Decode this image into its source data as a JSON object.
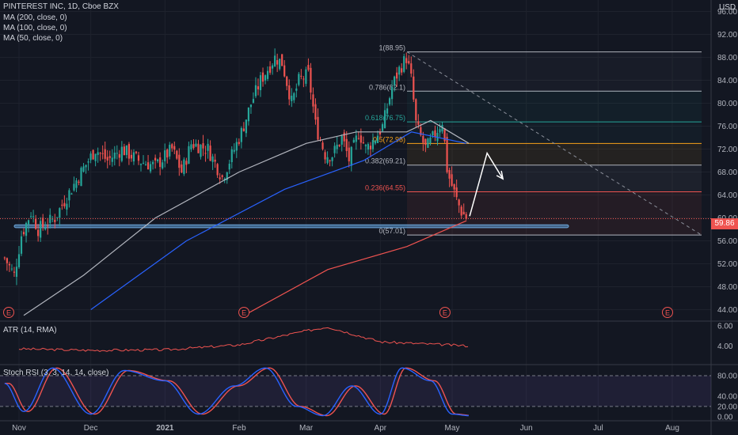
{
  "header": {
    "title": "PINTEREST INC, 1D, Cboe BZX",
    "indicators": [
      "MA (200, close, 0)",
      "MA (100, close, 0)",
      "MA (50, close, 0)"
    ],
    "currency": "USD"
  },
  "current_price": "59.86",
  "atr_label": "ATR (14, RMA)",
  "stoch_label": "Stoch RSI (3, 3, 14, 14, close)",
  "event_marker": "E",
  "colors": {
    "background": "#131722",
    "up": "#26a69a",
    "down": "#ef5350",
    "ma200": "#ef5350",
    "ma100": "#2962ff",
    "ma50": "#b2b5be",
    "stoch_k": "#2962ff",
    "stoch_d": "#ef5350",
    "support_band": "#5b9bd5"
  },
  "chart_data": [
    {
      "type": "candlestick",
      "x_axis": {
        "ticks": [
          "Nov",
          "Dec",
          "2021",
          "Feb",
          "Mar",
          "Apr",
          "May",
          "Jun",
          "Jul",
          "Aug"
        ]
      },
      "y_axis": {
        "ticks": [
          "96.00",
          "92.00",
          "88.00",
          "84.00",
          "80.00",
          "76.00",
          "72.00",
          "68.00",
          "64.00",
          "60.00",
          "56.00",
          "52.00",
          "48.00",
          "44.00"
        ],
        "range": [
          42,
          98
        ]
      },
      "price_path": [
        [
          "Oct 26",
          53
        ],
        [
          "Oct 30",
          50
        ],
        [
          "Nov 2",
          57
        ],
        [
          "Nov 6",
          61
        ],
        [
          "Nov 9",
          58
        ],
        [
          "Nov 16",
          60
        ],
        [
          "Nov 20",
          63
        ],
        [
          "Nov 27",
          68
        ],
        [
          "Dec 3",
          72
        ],
        [
          "Dec 8",
          70
        ],
        [
          "Dec 14",
          72
        ],
        [
          "Dec 21",
          70
        ],
        [
          "Dec 28",
          69
        ],
        [
          "Jan 4",
          72
        ],
        [
          "Jan 8",
          68
        ],
        [
          "Jan 12",
          73
        ],
        [
          "Jan 19",
          72
        ],
        [
          "Jan 25",
          67
        ],
        [
          "Jan 29",
          71
        ],
        [
          "Feb 2",
          75
        ],
        [
          "Feb 6",
          80
        ],
        [
          "Feb 10",
          84
        ],
        [
          "Feb 16",
          88
        ],
        [
          "Feb 19",
          87
        ],
        [
          "Feb 23",
          80
        ],
        [
          "Feb 26",
          84
        ],
        [
          "Mar 2",
          85
        ],
        [
          "Mar 5",
          76
        ],
        [
          "Mar 9",
          71
        ],
        [
          "Mar 12",
          71
        ],
        [
          "Mar 16",
          74
        ],
        [
          "Mar 19",
          70
        ],
        [
          "Mar 23",
          75
        ],
        [
          "Mar 26",
          72
        ],
        [
          "Mar 30",
          74
        ],
        [
          "Apr 2",
          76
        ],
        [
          "Apr 6",
          83
        ],
        [
          "Apr 9",
          86
        ],
        [
          "Apr 12",
          88
        ],
        [
          "Apr 14",
          84
        ],
        [
          "Apr 16",
          76
        ],
        [
          "Apr 20",
          72
        ],
        [
          "Apr 23",
          74
        ],
        [
          "Apr 27",
          77
        ],
        [
          "Apr 29",
          68
        ],
        [
          "May 3",
          63
        ],
        [
          "May 5",
          61
        ],
        [
          "May 7",
          60
        ]
      ],
      "moving_averages": [
        {
          "name": "MA (200, close, 0)",
          "points": [
            [
              "Feb 3",
              43
            ],
            [
              "Mar 10",
              51
            ],
            [
              "Apr 12",
              55
            ],
            [
              "May 7",
              59.5
            ]
          ]
        },
        {
          "name": "MA (100, close, 0)",
          "points": [
            [
              "Dec 1",
              44
            ],
            [
              "Jan 10",
              56
            ],
            [
              "Feb 20",
              65
            ],
            [
              "Mar 25",
              70
            ],
            [
              "Apr 14",
              75
            ],
            [
              "May 7",
              73
            ]
          ]
        },
        {
          "name": "MA (50, close, 0)",
          "points": [
            [
              "Nov 3",
              43
            ],
            [
              "Nov 28",
              50
            ],
            [
              "Dec 28",
              60
            ],
            [
              "Feb 1",
              68
            ],
            [
              "Mar 1",
              73
            ],
            [
              "Mar 22",
              75
            ],
            [
              "Apr 12",
              75
            ],
            [
              "Apr 22",
              77
            ],
            [
              "May 8",
              73
            ]
          ]
        }
      ],
      "fibonacci": [
        {
          "label": "1(88.95)",
          "level": 88.95
        },
        {
          "label": "0.786(82.1)",
          "level": 82.1
        },
        {
          "label": "0.618(76.75)",
          "level": 76.75
        },
        {
          "label": "0.5(72.98)",
          "level": 72.98
        },
        {
          "label": "0.382(69.21)",
          "level": 69.21
        },
        {
          "label": "0.236(64.55)",
          "level": 64.55
        },
        {
          "label": "0(57.01)",
          "level": 57.01
        }
      ],
      "support_band": [
        58.3,
        58.8
      ]
    },
    {
      "type": "line",
      "y_axis": {
        "ticks": [
          "6.00",
          "4.00"
        ],
        "range": [
          2.2,
          6.4
        ]
      },
      "series": [
        {
          "points": [
            [
              "Nov 1",
              3.7
            ],
            [
              "Dec 1",
              3.55
            ],
            [
              "Jan 1",
              3.6
            ],
            [
              "Feb 1",
              4.1
            ],
            [
              "Mar 1",
              5.5
            ],
            [
              "Mar 10",
              5.9
            ],
            [
              "Apr 1",
              4.4
            ],
            [
              "May 8",
              4.0
            ]
          ]
        }
      ]
    },
    {
      "type": "line",
      "y_axis": {
        "ticks": [
          "80.00",
          "40.00",
          "20.00",
          "0.00"
        ],
        "range": [
          -8,
          100
        ]
      },
      "series": [
        {
          "points": [
            [
              "Oct 26",
              65
            ],
            [
              "Nov 3",
              10
            ],
            [
              "Nov 15",
              95
            ],
            [
              "Dec 1",
              5
            ],
            [
              "Dec 15",
              90
            ],
            [
              "Jan 1",
              70
            ],
            [
              "Jan 15",
              5
            ],
            [
              "Jan 30",
              60
            ],
            [
              "Feb 12",
              95
            ],
            [
              "Feb 25",
              20
            ],
            [
              "Mar 8",
              2
            ],
            [
              "Mar 20",
              60
            ],
            [
              "Apr 1",
              5
            ],
            [
              "Apr 10",
              95
            ],
            [
              "Apr 22",
              70
            ],
            [
              "May 1",
              5
            ],
            [
              "May 8",
              2
            ]
          ]
        }
      ]
    }
  ]
}
